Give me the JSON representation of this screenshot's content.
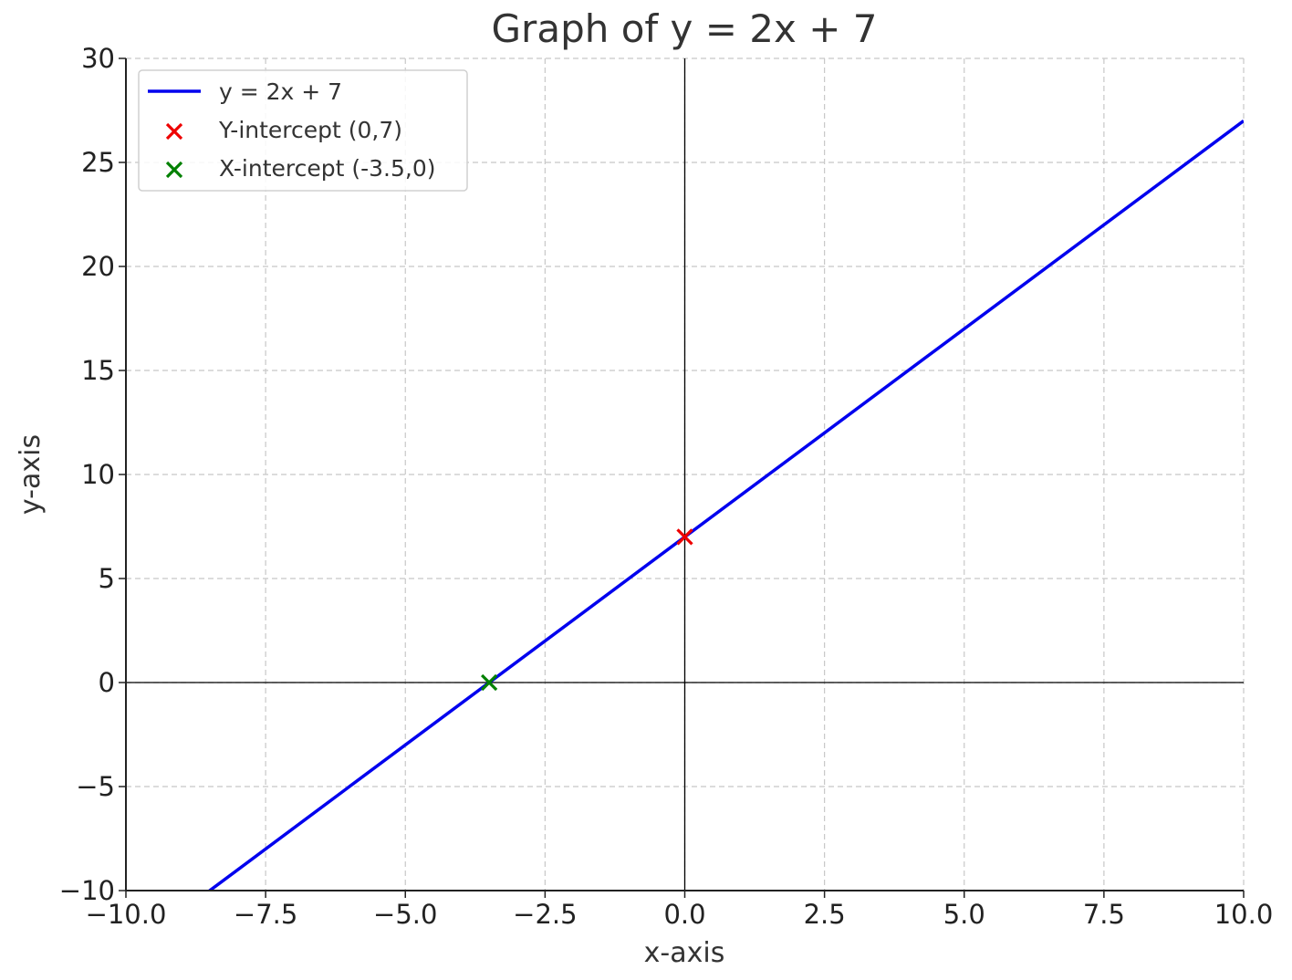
{
  "chart_data": {
    "type": "line",
    "title": "Graph of y = 2x + 7",
    "xlabel": "x-axis",
    "ylabel": "y-axis",
    "xlim": [
      -10,
      10
    ],
    "ylim": [
      -10,
      30
    ],
    "x_ticks": [
      -10,
      -7.5,
      -5,
      -2.5,
      0,
      2.5,
      5,
      7.5,
      10
    ],
    "x_tick_labels": [
      "−10.0",
      "−7.5",
      "−5.0",
      "−2.5",
      "0.0",
      "2.5",
      "5.0",
      "7.5",
      "10.0"
    ],
    "y_ticks": [
      -10,
      -5,
      0,
      5,
      10,
      15,
      20,
      25,
      30
    ],
    "y_tick_labels": [
      "−10",
      "−5",
      "0",
      "5",
      "10",
      "15",
      "20",
      "25",
      "30"
    ],
    "grid": true,
    "legend_position": "top-left",
    "series": [
      {
        "name": "y = 2x + 7",
        "kind": "line",
        "color": "#0000ee",
        "x": [
          -10,
          10
        ],
        "y": [
          -13,
          27
        ]
      },
      {
        "name": "Y-intercept (0,7)",
        "kind": "marker",
        "marker": "x",
        "color": "#ee0000",
        "x": [
          0
        ],
        "y": [
          7
        ]
      },
      {
        "name": "X-intercept (-3.5,0)",
        "kind": "marker",
        "marker": "x",
        "color": "#008000",
        "x": [
          -3.5
        ],
        "y": [
          0
        ]
      }
    ]
  }
}
